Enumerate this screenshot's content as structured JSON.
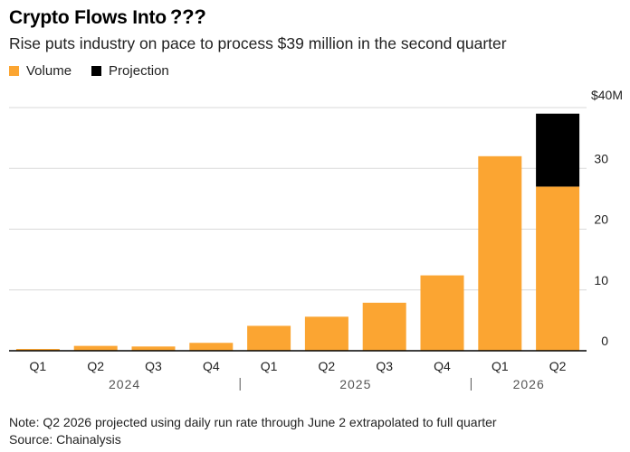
{
  "header": {
    "title": "Crypto Flows Into",
    "title_marks": "???",
    "subtitle": "Rise puts industry on pace to process $39 million in the second quarter"
  },
  "legend": {
    "items": [
      {
        "label": "Volume",
        "color": "#fba532"
      },
      {
        "label": "Projection",
        "color": "#000000"
      }
    ]
  },
  "chart_data": {
    "type": "bar",
    "stacked": true,
    "categories": [
      "Q1",
      "Q2",
      "Q3",
      "Q4",
      "Q1",
      "Q2",
      "Q3",
      "Q4",
      "Q1",
      "Q2"
    ],
    "year_labels": [
      "2024",
      "2025",
      "2026"
    ],
    "series": [
      {
        "name": "Volume",
        "color": "#fba532",
        "values": [
          0.3,
          0.8,
          0.7,
          1.3,
          4.1,
          5.6,
          7.9,
          12.4,
          32.0,
          27.0
        ]
      },
      {
        "name": "Projection",
        "color": "#000000",
        "values": [
          0,
          0,
          0,
          0,
          0,
          0,
          0,
          0,
          0,
          12.0
        ]
      }
    ],
    "y_ticks": [
      "0",
      "10",
      "20",
      "30",
      "$40M"
    ],
    "ylim": [
      0,
      40
    ],
    "grid": true,
    "y_axis_side": "right",
    "legend_placement": "top-left"
  },
  "footer": {
    "note": "Note: Q2 2026 projected using daily run rate through June 2 extrapolated to full quarter",
    "source": "Source: Chainalysis"
  }
}
